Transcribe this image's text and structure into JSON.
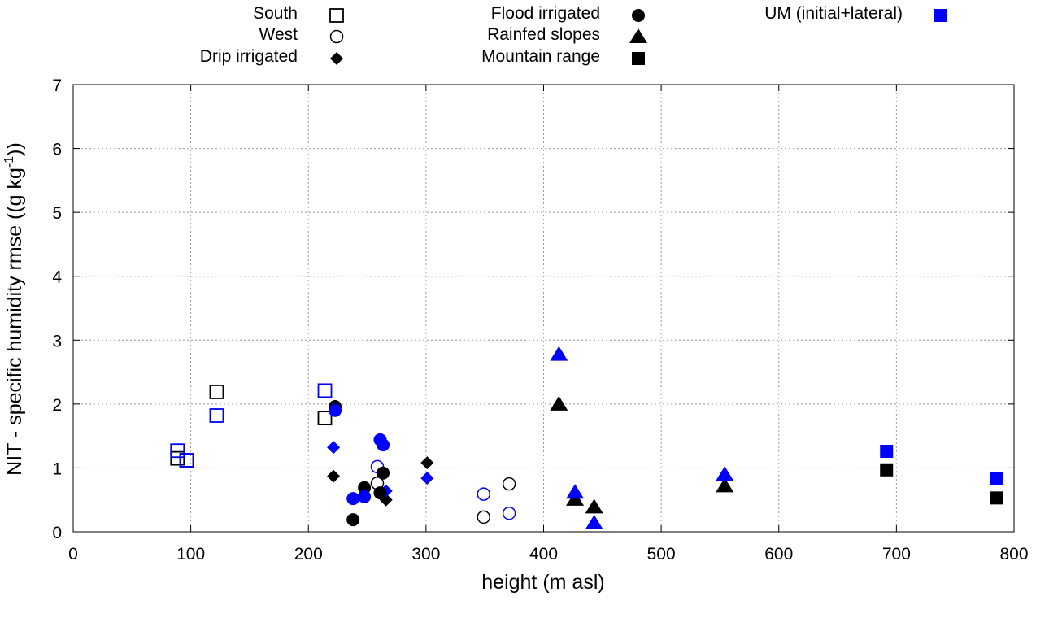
{
  "chart_data": {
    "type": "scatter",
    "xlabel": "height (m asl)",
    "ylabel_parts": [
      "NIT - specific humidity rmse ((g kg",
      "-1",
      "))"
    ],
    "xlim": [
      0,
      800
    ],
    "ylim": [
      0,
      7
    ],
    "xticks": [
      0,
      100,
      200,
      300,
      400,
      500,
      600,
      700,
      800
    ],
    "yticks": [
      0,
      1,
      2,
      3,
      4,
      5,
      6,
      7
    ],
    "grid": true,
    "legend_placement": "top, outside plot",
    "colors": {
      "obs": "#000000",
      "um": "#0000ff"
    },
    "legend": [
      {
        "label": "South",
        "marker": "square",
        "filled": false,
        "color": "obs"
      },
      {
        "label": "West",
        "marker": "circle",
        "filled": false,
        "color": "obs"
      },
      {
        "label": "Drip irrigated",
        "marker": "diamond",
        "filled": true,
        "color": "obs"
      },
      {
        "label": "Flood irrigated",
        "marker": "circle",
        "filled": true,
        "color": "obs"
      },
      {
        "label": "Rainfed slopes",
        "marker": "triangle",
        "filled": true,
        "color": "obs"
      },
      {
        "label": "Mountain range",
        "marker": "square",
        "filled": true,
        "color": "obs"
      },
      {
        "label": "UM (initial+lateral)",
        "marker": "square",
        "filled": true,
        "color": "um"
      }
    ],
    "series": [
      {
        "name": "South",
        "marker": "square",
        "filled": false,
        "obs": [
          [
            88.7,
            1.15
          ],
          [
            96.5,
            1.12
          ],
          [
            122,
            2.19
          ],
          [
            214,
            1.78
          ]
        ],
        "um": [
          [
            88.7,
            1.27
          ],
          [
            96.5,
            1.12
          ],
          [
            122,
            1.82
          ],
          [
            214,
            2.21
          ]
        ]
      },
      {
        "name": "West",
        "marker": "circle",
        "filled": false,
        "obs": [
          [
            258.6,
            0.76
          ],
          [
            349,
            0.23
          ],
          [
            370.7,
            0.75
          ]
        ],
        "um": [
          [
            258.6,
            1.02
          ],
          [
            349,
            0.59
          ],
          [
            370.7,
            0.29
          ]
        ]
      },
      {
        "name": "Drip irrigated",
        "marker": "diamond",
        "filled": true,
        "obs": [
          [
            221.3,
            0.87
          ],
          [
            266,
            0.5
          ],
          [
            301,
            1.08
          ]
        ],
        "um": [
          [
            221.3,
            1.32
          ],
          [
            266,
            0.64
          ],
          [
            301,
            0.84
          ]
        ]
      },
      {
        "name": "Flood irrigated",
        "marker": "circle",
        "filled": true,
        "obs": [
          [
            222.7,
            1.96
          ],
          [
            263.5,
            0.92
          ],
          [
            247.6,
            0.69
          ],
          [
            238,
            0.19
          ],
          [
            261,
            0.61
          ]
        ],
        "um": [
          [
            222.7,
            1.9
          ],
          [
            261,
            1.44
          ],
          [
            263.5,
            1.36
          ],
          [
            247.6,
            0.55
          ],
          [
            238,
            0.52
          ]
        ]
      },
      {
        "name": "Rainfed slopes",
        "marker": "triangle",
        "filled": true,
        "obs": [
          [
            413,
            2.0
          ],
          [
            426.7,
            0.51
          ],
          [
            443,
            0.39
          ],
          [
            554,
            0.72
          ]
        ],
        "um": [
          [
            413,
            2.78
          ],
          [
            426.7,
            0.62
          ],
          [
            443,
            0.14
          ],
          [
            554,
            0.9
          ]
        ]
      },
      {
        "name": "Mountain range",
        "marker": "square",
        "filled": true,
        "obs": [
          [
            691.6,
            0.97
          ],
          [
            785,
            0.53
          ]
        ],
        "um": [
          [
            691.6,
            1.26
          ],
          [
            785,
            0.84
          ]
        ]
      }
    ]
  }
}
